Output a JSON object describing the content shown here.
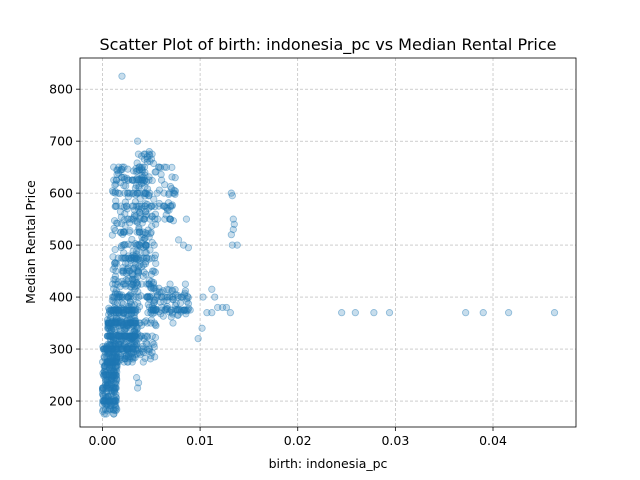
{
  "chart_data": {
    "type": "scatter",
    "title": "Scatter Plot of birth: indonesia_pc vs Median Rental Price",
    "xlabel": "birth: indonesia_pc",
    "ylabel": "Median Rental Price",
    "xlim": [
      -0.0023,
      0.0485
    ],
    "ylim": [
      150,
      860
    ],
    "xticks": [
      0.0,
      0.01,
      0.02,
      0.03,
      0.04
    ],
    "xtick_labels": [
      "0.00",
      "0.01",
      "0.02",
      "0.03",
      "0.04"
    ],
    "yticks": [
      200,
      300,
      400,
      500,
      600,
      700,
      800
    ],
    "ytick_labels": [
      "200",
      "300",
      "400",
      "500",
      "600",
      "700",
      "800"
    ],
    "grid": true,
    "color": "#1f77b4",
    "x": [
      0.0245,
      0.0259,
      0.0278,
      0.0294,
      0.0372,
      0.039,
      0.0416,
      0.0463,
      0.0132,
      0.0133,
      0.0134,
      0.0135,
      0.0138,
      0.0133,
      0.0132,
      0.0134,
      0.0131,
      0.0112,
      0.0118,
      0.0115,
      0.0123,
      0.0127,
      0.0107,
      0.0102,
      0.0098,
      0.0103,
      0.0112,
      0.0086,
      0.0083,
      0.0088,
      0.0078,
      0.0081,
      0.002,
      0.0036,
      0.0048,
      0.0046,
      0.0046,
      0.0035,
      0.0037,
      0.0036
    ],
    "y": [
      370,
      370,
      370,
      370,
      370,
      370,
      370,
      370,
      600,
      595,
      550,
      540,
      500,
      500,
      520,
      530,
      370,
      415,
      380,
      400,
      380,
      380,
      370,
      340,
      320,
      400,
      370,
      550,
      500,
      495,
      510,
      400,
      825,
      700,
      680,
      670,
      660,
      245,
      235,
      225
    ],
    "clusters": [
      {
        "x": [
          0.0,
          0.0015
        ],
        "y": [
          180,
          310
        ],
        "n": 260
      },
      {
        "x": [
          0.0005,
          0.0035
        ],
        "y": [
          280,
          380
        ],
        "n": 340
      },
      {
        "x": [
          0.001,
          0.004
        ],
        "y": [
          380,
          480
        ],
        "n": 140
      },
      {
        "x": [
          0.001,
          0.0045
        ],
        "y": [
          480,
          650
        ],
        "n": 170
      },
      {
        "x": [
          0.0035,
          0.0055
        ],
        "y": [
          420,
          680
        ],
        "n": 110
      },
      {
        "x": [
          0.0045,
          0.009
        ],
        "y": [
          360,
          420
        ],
        "n": 120
      },
      {
        "x": [
          0.0055,
          0.0075
        ],
        "y": [
          540,
          650
        ],
        "n": 45
      },
      {
        "x": [
          0.0025,
          0.0055
        ],
        "y": [
          280,
          360
        ],
        "n": 70
      }
    ]
  }
}
